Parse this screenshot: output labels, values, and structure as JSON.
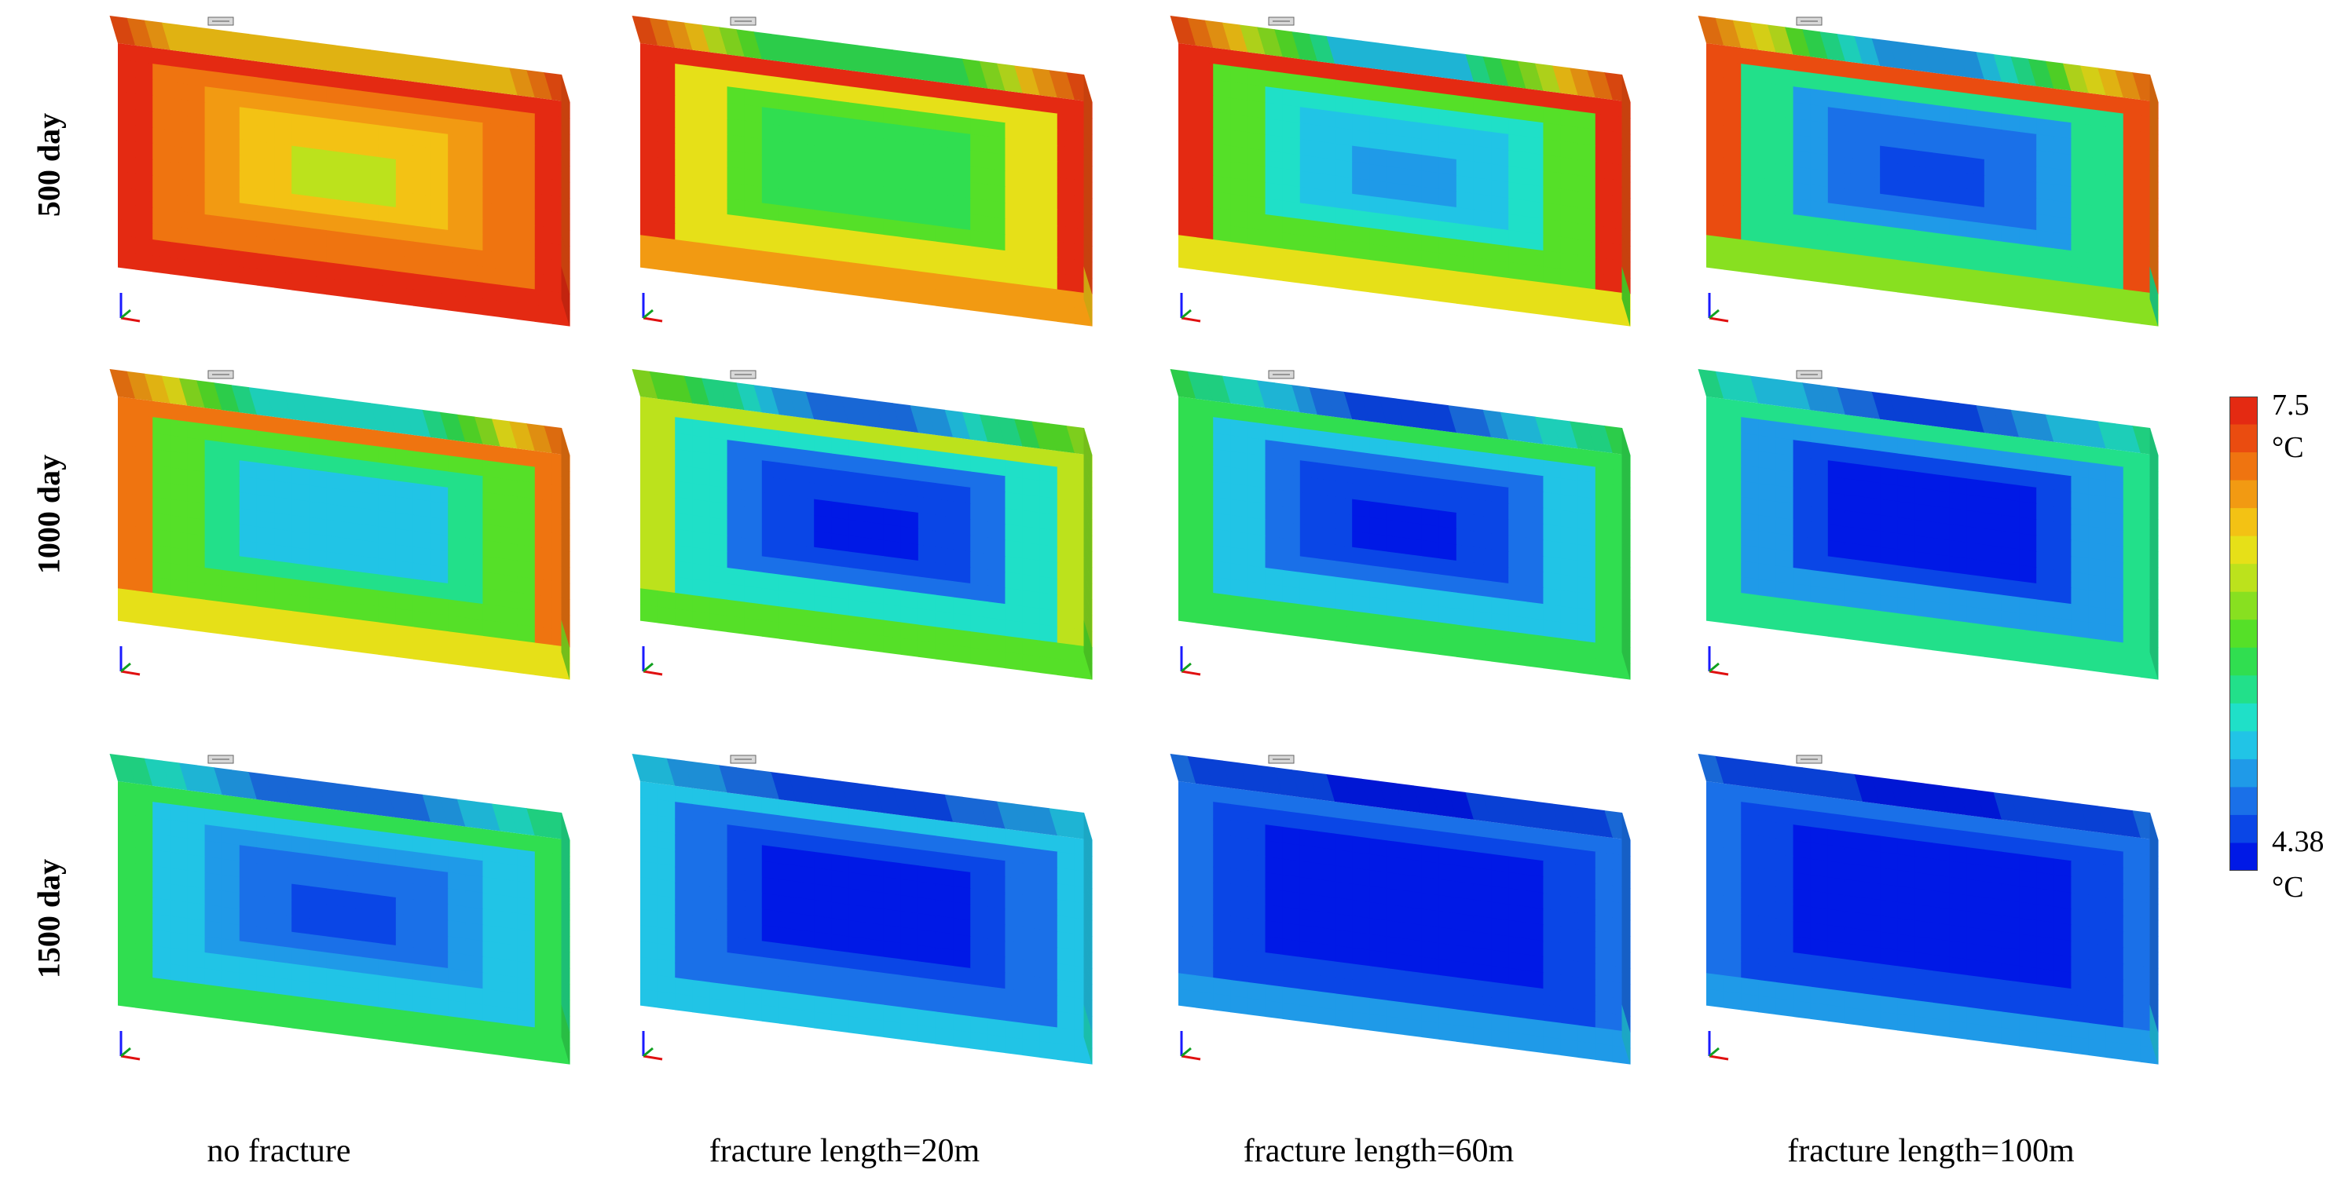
{
  "row_labels": [
    "500 day",
    "1000 day",
    "1500 day"
  ],
  "column_labels": [
    "no fracture",
    "fracture length=20m",
    "fracture length=60m",
    "fracture length=100m"
  ],
  "legend": {
    "max_value": "7.5",
    "max_unit": "°C",
    "min_value": "4.38",
    "min_unit": "°C",
    "colors": [
      "#0019e6",
      "#0a46e6",
      "#1a70e8",
      "#1f9ae8",
      "#21c4e6",
      "#1fe0c8",
      "#22e08a",
      "#30de50",
      "#55e028",
      "#88e020",
      "#bce21c",
      "#e6e018",
      "#f3c214",
      "#f29a12",
      "#ef7410",
      "#ea4c10",
      "#e42a12"
    ]
  },
  "panels": [
    {
      "row": 0,
      "col": 0,
      "temps": {
        "edge": 1.0,
        "ring1": 0.9,
        "ring2": 0.82,
        "ring3": 0.72,
        "core": 0.65,
        "bottom": 0.98
      }
    },
    {
      "row": 0,
      "col": 1,
      "temps": {
        "edge": 1.0,
        "ring1": 0.7,
        "ring2": 0.5,
        "ring3": 0.44,
        "core": 0.42,
        "bottom": 0.7
      }
    },
    {
      "row": 0,
      "col": 2,
      "temps": {
        "edge": 1.0,
        "ring1": 0.48,
        "ring2": 0.3,
        "ring3": 0.24,
        "core": 0.2,
        "bottom": 0.45
      }
    },
    {
      "row": 0,
      "col": 3,
      "temps": {
        "edge": 0.92,
        "ring1": 0.35,
        "ring2": 0.2,
        "ring3": 0.12,
        "core": 0.08,
        "bottom": 0.35
      }
    },
    {
      "row": 1,
      "col": 0,
      "temps": {
        "edge": 0.9,
        "ring1": 0.5,
        "ring2": 0.35,
        "ring3": 0.28,
        "core": 0.26,
        "bottom": 0.5
      }
    },
    {
      "row": 1,
      "col": 1,
      "temps": {
        "edge": 0.6,
        "ring1": 0.3,
        "ring2": 0.15,
        "ring3": 0.08,
        "core": 0.03,
        "bottom": 0.45
      }
    },
    {
      "row": 1,
      "col": 2,
      "temps": {
        "edge": 0.45,
        "ring1": 0.22,
        "ring2": 0.1,
        "ring3": 0.04,
        "core": 0.02,
        "bottom": 0.4
      }
    },
    {
      "row": 1,
      "col": 3,
      "temps": {
        "edge": 0.38,
        "ring1": 0.18,
        "ring2": 0.08,
        "ring3": 0.03,
        "core": 0.01,
        "bottom": 0.33
      }
    },
    {
      "row": 2,
      "col": 0,
      "temps": {
        "edge": 0.42,
        "ring1": 0.28,
        "ring2": 0.16,
        "ring3": 0.1,
        "core": 0.08,
        "bottom": 0.4
      }
    },
    {
      "row": 2,
      "col": 1,
      "temps": {
        "edge": 0.25,
        "ring1": 0.12,
        "ring2": 0.06,
        "ring3": 0.02,
        "core": 0.01,
        "bottom": 0.25
      }
    },
    {
      "row": 2,
      "col": 2,
      "temps": {
        "edge": 0.1,
        "ring1": 0.06,
        "ring2": 0.03,
        "ring3": 0.01,
        "core": 0.0,
        "bottom": 0.22
      }
    },
    {
      "row": 2,
      "col": 3,
      "temps": {
        "edge": 0.1,
        "ring1": 0.06,
        "ring2": 0.03,
        "ring3": 0.01,
        "core": 0.0,
        "bottom": 0.22
      }
    }
  ],
  "icons": {
    "axis_triad": "xyz-axis-icon",
    "probe_tag": "well-marker-icon"
  }
}
